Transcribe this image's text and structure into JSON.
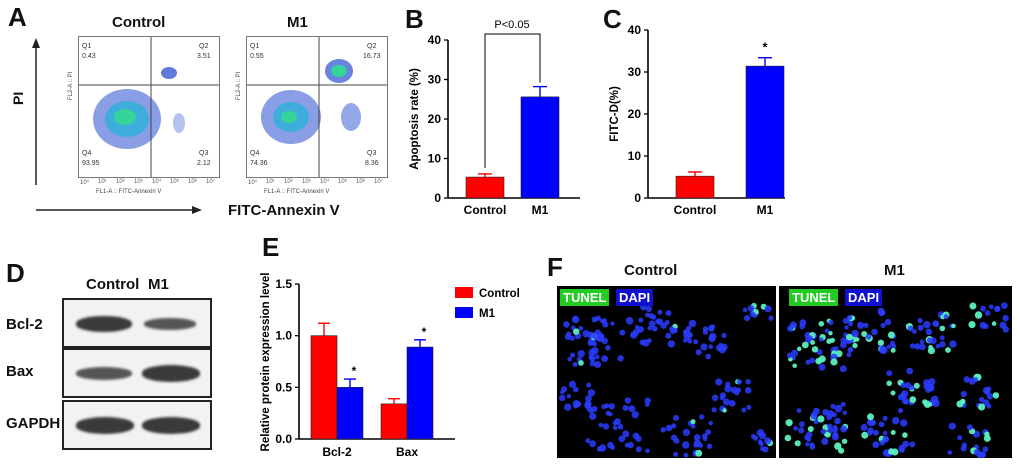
{
  "panels": {
    "A": "A",
    "B": "B",
    "C": "C",
    "D": "D",
    "E": "E",
    "F": "F"
  },
  "flow": {
    "y_axis": "PI",
    "x_axis": "FITC-Annexin V",
    "fl2": "FL2-A :: PI",
    "fl1": "FL1-A :: FITC-Annexin V",
    "ticks": [
      "10⁰",
      "10¹",
      "10²",
      "10³",
      "10⁴",
      "10⁵",
      "10⁶",
      "10⁷"
    ],
    "plots": [
      {
        "title": "Control",
        "q1": "Q1",
        "q1v": "0.43",
        "q2": "Q2",
        "q2v": "3.51",
        "q3": "Q3",
        "q3v": "2.12",
        "q4": "Q4",
        "q4v": "93.95"
      },
      {
        "title": "M1",
        "q1": "Q1",
        "q1v": "0.55",
        "q2": "Q2",
        "q2v": "16.73",
        "q3": "Q3",
        "q3v": "8.36",
        "q4": "Q4",
        "q4v": "74.36"
      }
    ]
  },
  "blot": {
    "cols": [
      "Control",
      "M1"
    ],
    "rows": [
      "Bcl-2",
      "Bax",
      "GAPDH"
    ]
  },
  "micro": {
    "cols": [
      "Control",
      "M1"
    ],
    "tunel": "TUNEL",
    "dapi": "DAPI"
  },
  "chart_data": [
    {
      "panel": "B",
      "type": "bar",
      "categories": [
        "Control",
        "M1"
      ],
      "values": [
        5.3,
        25.6
      ],
      "errors": [
        0.8,
        2.6
      ],
      "colors": [
        "#ff0000",
        "#0000ff"
      ],
      "ylabel": "Apoptosis rate  (%)",
      "ylim": [
        0,
        40
      ],
      "yticks": [
        0,
        10,
        20,
        30,
        40
      ],
      "annotation": "P<0.05"
    },
    {
      "panel": "C",
      "type": "bar",
      "categories": [
        "Control",
        "M1"
      ],
      "values": [
        5.2,
        31.4
      ],
      "errors": [
        1.0,
        2.0
      ],
      "colors": [
        "#ff0000",
        "#0000ff"
      ],
      "ylabel": "FITC-D(%)",
      "ylim": [
        0,
        40
      ],
      "yticks": [
        0,
        10,
        20,
        30,
        40
      ],
      "annotation": "*"
    },
    {
      "panel": "E",
      "type": "bar",
      "categories": [
        "Bcl-2",
        "Bax"
      ],
      "series": [
        {
          "name": "Control",
          "color": "#ff0000",
          "values": [
            1.0,
            0.34
          ],
          "errors": [
            0.12,
            0.05
          ]
        },
        {
          "name": "M1",
          "color": "#0000ff",
          "values": [
            0.5,
            0.89
          ],
          "errors": [
            0.08,
            0.07
          ]
        }
      ],
      "ylabel": "Relative protein expression level",
      "ylim": [
        0,
        1.5
      ],
      "yticks": [
        0.0,
        0.5,
        1.0,
        1.5
      ],
      "annotations": [
        "*",
        "*"
      ]
    }
  ]
}
